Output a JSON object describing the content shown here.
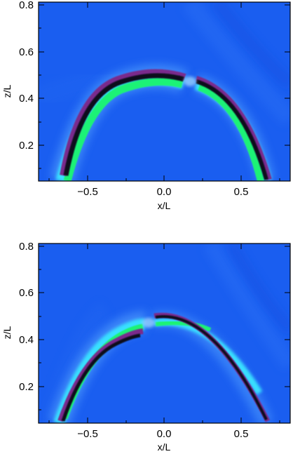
{
  "chart_data": [
    {
      "type": "heatmap",
      "title": "",
      "xlabel": "x/L",
      "ylabel": "z/L",
      "xlim": [
        -0.82,
        0.82
      ],
      "ylim": [
        0.05,
        0.81
      ],
      "xticks": [
        -0.5,
        0.0,
        0.5
      ],
      "xtick_labels": [
        "−0.5",
        "0.0",
        "0.5"
      ],
      "yticks": [
        0.2,
        0.4,
        0.6,
        0.8
      ],
      "ytick_labels": [
        "0.2",
        "0.4",
        "0.6",
        "0.8"
      ],
      "colormap": "blue-cyan-green-black",
      "background_color": "#1a5ef0",
      "loop": {
        "footpoints_x": [
          -0.65,
          0.66
        ],
        "apex_z": 0.49,
        "apex_x": 0.0,
        "gap_x": 0.14,
        "brighter_side": "left"
      }
    },
    {
      "type": "heatmap",
      "title": "",
      "xlabel": "x/L",
      "ylabel": "z/L",
      "xlim": [
        -0.82,
        0.82
      ],
      "ylim": [
        0.05,
        0.81
      ],
      "xticks": [
        -0.5,
        0.0,
        0.5
      ],
      "xtick_labels": [
        "−0.5",
        "0.0",
        "0.5"
      ],
      "yticks": [
        0.2,
        0.4,
        0.6,
        0.8
      ],
      "ytick_labels": [
        "0.2",
        "0.4",
        "0.6",
        "0.8"
      ],
      "colormap": "blue-cyan-green-black",
      "background_color": "#1a5ef0",
      "loop": {
        "footpoints_x": [
          -0.67,
          0.66
        ],
        "apex_z": 0.49,
        "apex_x": 0.0,
        "gap_x": -0.08,
        "brighter_side": "left"
      }
    }
  ]
}
